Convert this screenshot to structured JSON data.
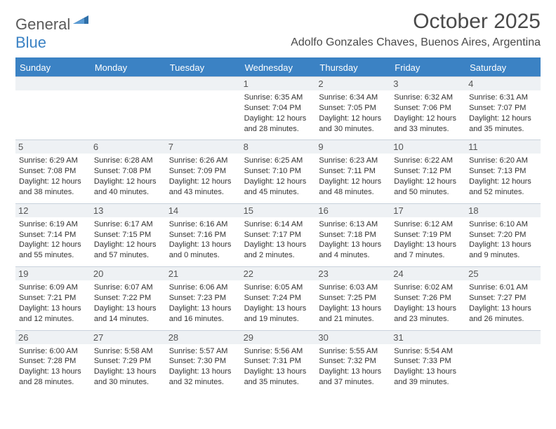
{
  "brand": {
    "part1": "General",
    "part2": "Blue"
  },
  "title": "October 2025",
  "location": "Adolfo Gonzales Chaves, Buenos Aires, Argentina",
  "colors": {
    "accent": "#3b82c4",
    "header_bg": "#eef1f4",
    "border": "#c9d2dc",
    "text": "#333333",
    "title_text": "#4a4a4a",
    "logo_gray": "#5a5a5a"
  },
  "weekdays": [
    "Sunday",
    "Monday",
    "Tuesday",
    "Wednesday",
    "Thursday",
    "Friday",
    "Saturday"
  ],
  "weeks": [
    [
      {
        "n": "",
        "empty": true
      },
      {
        "n": "",
        "empty": true
      },
      {
        "n": "",
        "empty": true
      },
      {
        "n": "1",
        "sr": "6:35 AM",
        "ss": "7:04 PM",
        "dh": "12",
        "dm": "28"
      },
      {
        "n": "2",
        "sr": "6:34 AM",
        "ss": "7:05 PM",
        "dh": "12",
        "dm": "30"
      },
      {
        "n": "3",
        "sr": "6:32 AM",
        "ss": "7:06 PM",
        "dh": "12",
        "dm": "33"
      },
      {
        "n": "4",
        "sr": "6:31 AM",
        "ss": "7:07 PM",
        "dh": "12",
        "dm": "35"
      }
    ],
    [
      {
        "n": "5",
        "sr": "6:29 AM",
        "ss": "7:08 PM",
        "dh": "12",
        "dm": "38"
      },
      {
        "n": "6",
        "sr": "6:28 AM",
        "ss": "7:08 PM",
        "dh": "12",
        "dm": "40"
      },
      {
        "n": "7",
        "sr": "6:26 AM",
        "ss": "7:09 PM",
        "dh": "12",
        "dm": "43"
      },
      {
        "n": "8",
        "sr": "6:25 AM",
        "ss": "7:10 PM",
        "dh": "12",
        "dm": "45"
      },
      {
        "n": "9",
        "sr": "6:23 AM",
        "ss": "7:11 PM",
        "dh": "12",
        "dm": "48"
      },
      {
        "n": "10",
        "sr": "6:22 AM",
        "ss": "7:12 PM",
        "dh": "12",
        "dm": "50"
      },
      {
        "n": "11",
        "sr": "6:20 AM",
        "ss": "7:13 PM",
        "dh": "12",
        "dm": "52"
      }
    ],
    [
      {
        "n": "12",
        "sr": "6:19 AM",
        "ss": "7:14 PM",
        "dh": "12",
        "dm": "55"
      },
      {
        "n": "13",
        "sr": "6:17 AM",
        "ss": "7:15 PM",
        "dh": "12",
        "dm": "57"
      },
      {
        "n": "14",
        "sr": "6:16 AM",
        "ss": "7:16 PM",
        "dh": "13",
        "dm": "0"
      },
      {
        "n": "15",
        "sr": "6:14 AM",
        "ss": "7:17 PM",
        "dh": "13",
        "dm": "2"
      },
      {
        "n": "16",
        "sr": "6:13 AM",
        "ss": "7:18 PM",
        "dh": "13",
        "dm": "4"
      },
      {
        "n": "17",
        "sr": "6:12 AM",
        "ss": "7:19 PM",
        "dh": "13",
        "dm": "7"
      },
      {
        "n": "18",
        "sr": "6:10 AM",
        "ss": "7:20 PM",
        "dh": "13",
        "dm": "9"
      }
    ],
    [
      {
        "n": "19",
        "sr": "6:09 AM",
        "ss": "7:21 PM",
        "dh": "13",
        "dm": "12"
      },
      {
        "n": "20",
        "sr": "6:07 AM",
        "ss": "7:22 PM",
        "dh": "13",
        "dm": "14"
      },
      {
        "n": "21",
        "sr": "6:06 AM",
        "ss": "7:23 PM",
        "dh": "13",
        "dm": "16"
      },
      {
        "n": "22",
        "sr": "6:05 AM",
        "ss": "7:24 PM",
        "dh": "13",
        "dm": "19"
      },
      {
        "n": "23",
        "sr": "6:03 AM",
        "ss": "7:25 PM",
        "dh": "13",
        "dm": "21"
      },
      {
        "n": "24",
        "sr": "6:02 AM",
        "ss": "7:26 PM",
        "dh": "13",
        "dm": "23"
      },
      {
        "n": "25",
        "sr": "6:01 AM",
        "ss": "7:27 PM",
        "dh": "13",
        "dm": "26"
      }
    ],
    [
      {
        "n": "26",
        "sr": "6:00 AM",
        "ss": "7:28 PM",
        "dh": "13",
        "dm": "28"
      },
      {
        "n": "27",
        "sr": "5:58 AM",
        "ss": "7:29 PM",
        "dh": "13",
        "dm": "30"
      },
      {
        "n": "28",
        "sr": "5:57 AM",
        "ss": "7:30 PM",
        "dh": "13",
        "dm": "32"
      },
      {
        "n": "29",
        "sr": "5:56 AM",
        "ss": "7:31 PM",
        "dh": "13",
        "dm": "35"
      },
      {
        "n": "30",
        "sr": "5:55 AM",
        "ss": "7:32 PM",
        "dh": "13",
        "dm": "37"
      },
      {
        "n": "31",
        "sr": "5:54 AM",
        "ss": "7:33 PM",
        "dh": "13",
        "dm": "39"
      },
      {
        "n": "",
        "empty": true
      }
    ]
  ],
  "labels": {
    "sunrise": "Sunrise: ",
    "sunset": "Sunset: ",
    "daylight1": "Daylight: ",
    "daylight2": " hours and ",
    "daylight3": " minutes."
  }
}
